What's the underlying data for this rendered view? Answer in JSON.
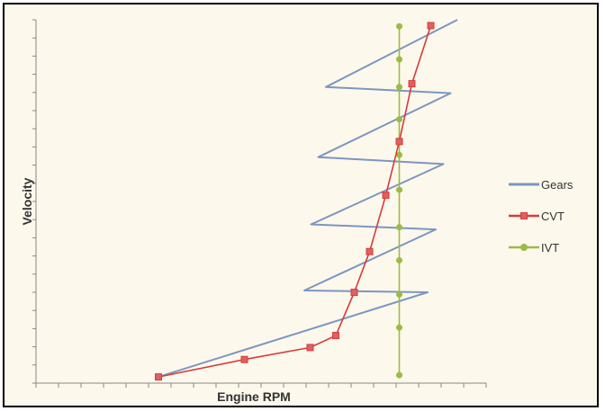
{
  "chart_data": {
    "type": "line",
    "xlabel": "Engine RPM",
    "ylabel": "Velocity",
    "xlim": [
      0,
      100
    ],
    "ylim": [
      0,
      100
    ],
    "grid": false,
    "legend_position": "right",
    "colors": {
      "Gears": "#7b97c0",
      "CVT": "#d63b3b",
      "IVT": "#9bbb45",
      "background": "#fdf8ec"
    },
    "series": [
      {
        "name": "Gears",
        "marker": "none",
        "points": [
          [
            27.2,
            1.7
          ],
          [
            87.0,
            25.0
          ],
          [
            59.6,
            25.5
          ],
          [
            88.8,
            42.3
          ],
          [
            61.1,
            43.7
          ],
          [
            90.5,
            60.3
          ],
          [
            62.7,
            62.2
          ],
          [
            92.1,
            79.8
          ],
          [
            64.4,
            81.5
          ],
          [
            93.6,
            100
          ]
        ]
      },
      {
        "name": "CVT",
        "marker": "square",
        "points": [
          [
            27.2,
            1.7
          ],
          [
            46.3,
            6.5
          ],
          [
            60.9,
            9.8
          ],
          [
            66.6,
            13.1
          ],
          [
            70.7,
            25.0
          ],
          [
            74.1,
            36.2
          ],
          [
            77.7,
            51.7
          ],
          [
            80.7,
            66.5
          ],
          [
            83.5,
            82.4
          ],
          [
            87.7,
            98.4
          ]
        ]
      },
      {
        "name": "IVT",
        "marker": "circle",
        "points": [
          [
            80.7,
            2.2
          ],
          [
            80.7,
            15.3
          ],
          [
            80.7,
            24.4
          ],
          [
            80.7,
            33.8
          ],
          [
            80.7,
            42.9
          ],
          [
            80.7,
            53.2
          ],
          [
            80.7,
            62.8
          ],
          [
            80.7,
            72.6
          ],
          [
            80.7,
            81.5
          ],
          [
            80.7,
            89.1
          ],
          [
            80.7,
            98.2
          ]
        ]
      }
    ],
    "legend": [
      "Gears",
      "CVT",
      "IVT"
    ]
  }
}
